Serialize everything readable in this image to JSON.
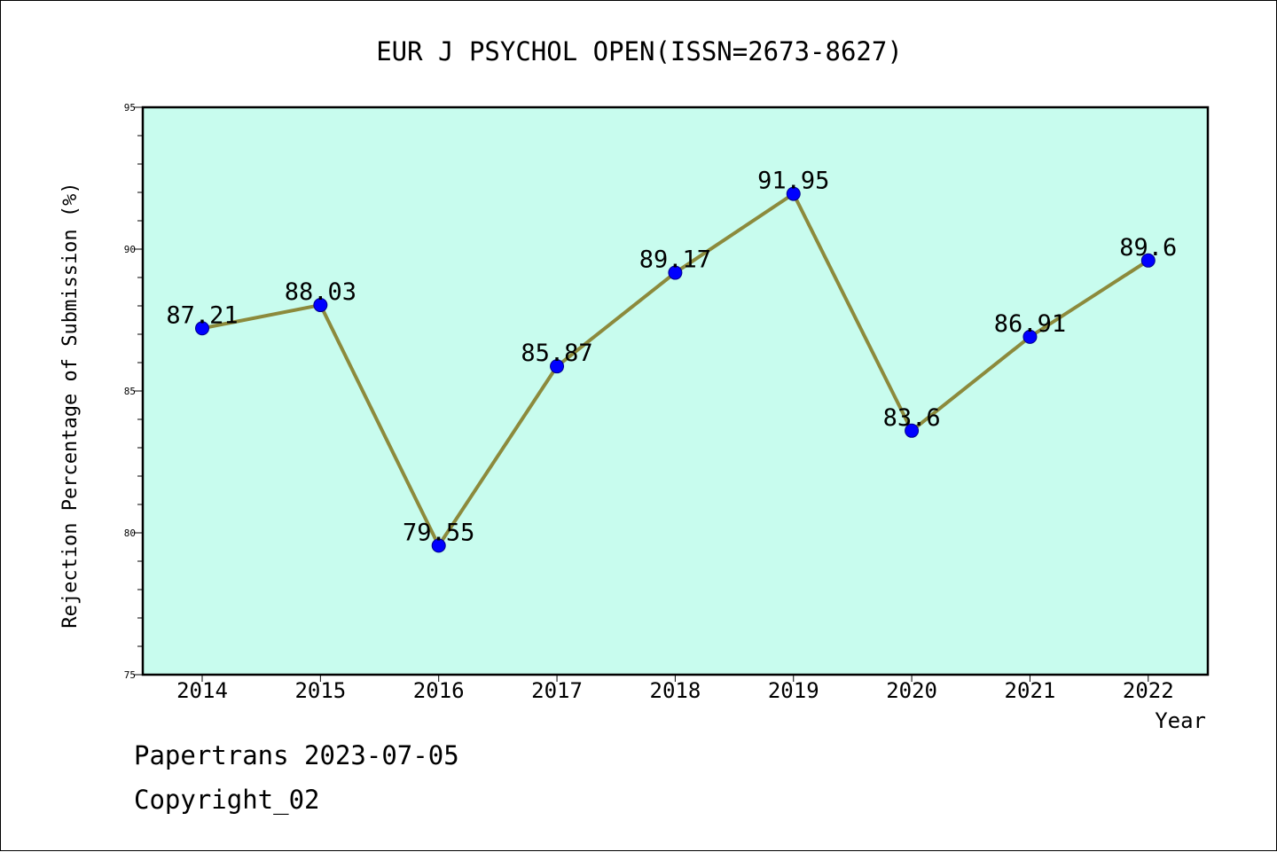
{
  "chart_data": {
    "type": "line",
    "title": "EUR J PSYCHOL OPEN(ISSN=2673-8627)",
    "xlabel": "Year",
    "ylabel": "Rejection Percentage of Submission (%)",
    "categories": [
      "2014",
      "2015",
      "2016",
      "2017",
      "2018",
      "2019",
      "2020",
      "2021",
      "2022"
    ],
    "values": [
      87.21,
      88.03,
      79.55,
      85.87,
      89.17,
      91.95,
      83.6,
      86.91,
      89.6
    ],
    "data_labels": [
      "87.21",
      "88.03",
      "79.55",
      "85.87",
      "89.17",
      "91.95",
      "83.6",
      "86.91",
      "89.6"
    ],
    "ylim": [
      75,
      95
    ],
    "yticks": [
      "75",
      "80",
      "85",
      "90",
      "95"
    ],
    "grid": false,
    "colors": {
      "plot_background": "#c8fcee",
      "line": "#8c8a3c",
      "marker": "#0000ff"
    }
  },
  "footer": {
    "credit": "Papertrans 2023-07-05",
    "copyright": "Copyright_02"
  }
}
